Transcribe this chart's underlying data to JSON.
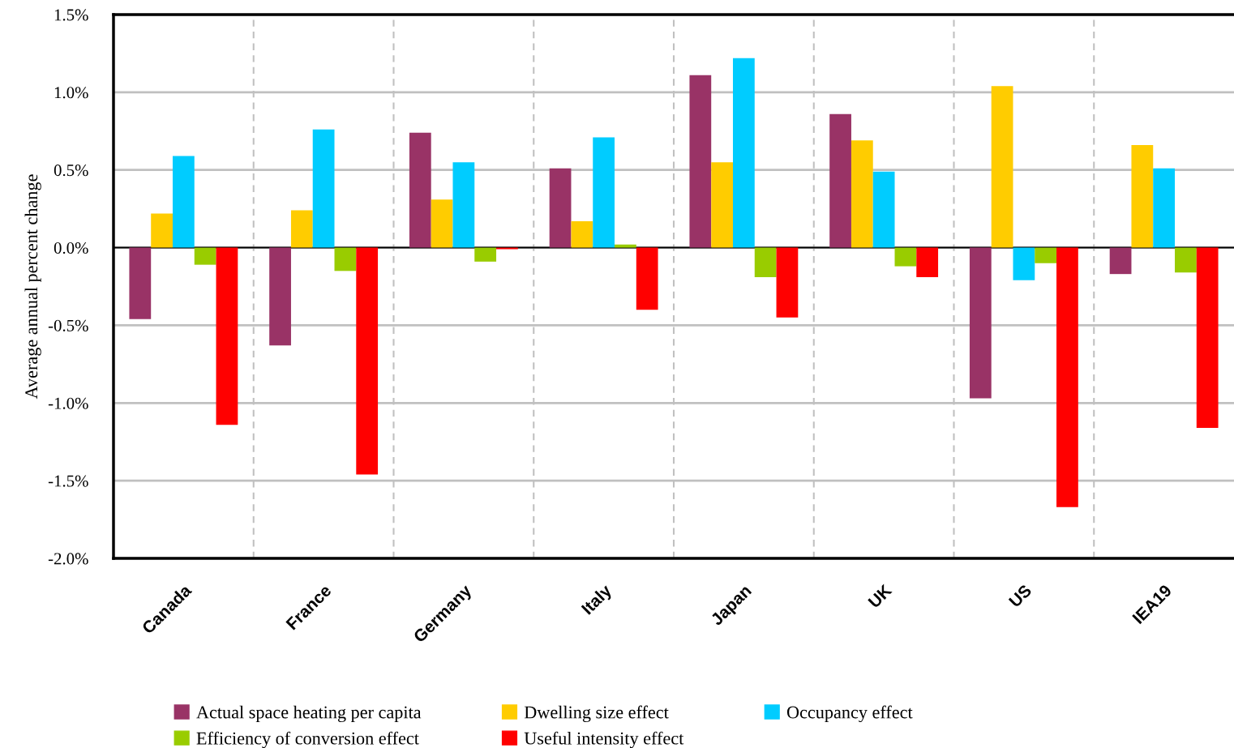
{
  "chart_data": {
    "type": "bar",
    "ylabel": "Average annual percent change",
    "categories": [
      "Canada",
      "France",
      "Germany",
      "Italy",
      "Japan",
      "UK",
      "US",
      "IEA19"
    ],
    "series": [
      {
        "name": "Actual space heating per capita",
        "color": "#993366",
        "values": [
          -0.46,
          -0.63,
          0.74,
          0.51,
          1.11,
          0.86,
          -0.97,
          -0.17
        ]
      },
      {
        "name": "Dwelling size effect",
        "color": "#ffcc00",
        "values": [
          0.22,
          0.24,
          0.31,
          0.17,
          0.55,
          0.69,
          1.04,
          0.66
        ]
      },
      {
        "name": "Occupancy effect",
        "color": "#00ccff",
        "values": [
          0.59,
          0.76,
          0.55,
          0.71,
          1.22,
          0.49,
          -0.21,
          0.51
        ]
      },
      {
        "name": "Efficiency of conversion effect",
        "color": "#99cc00",
        "values": [
          -0.11,
          -0.15,
          -0.09,
          0.02,
          -0.19,
          -0.12,
          -0.1,
          -0.16
        ]
      },
      {
        "name": "Useful intensity effect",
        "color": "#ff0000",
        "values": [
          -1.14,
          -1.46,
          -0.01,
          -0.4,
          -0.45,
          -0.19,
          -1.67,
          -1.16
        ]
      }
    ],
    "ylim": [
      -2.0,
      1.5
    ],
    "yticks": [
      {
        "value": -2.0,
        "label": "-2.0%"
      },
      {
        "value": -1.5,
        "label": "-1.5%"
      },
      {
        "value": -1.0,
        "label": "-1.0%"
      },
      {
        "value": -0.5,
        "label": "-0.5%"
      },
      {
        "value": 0.0,
        "label": "0.0%"
      },
      {
        "value": 0.5,
        "label": "0.5%"
      },
      {
        "value": 1.0,
        "label": "1.0%"
      },
      {
        "value": 1.5,
        "label": "1.5%"
      }
    ],
    "grid": true,
    "legend": "bottom"
  }
}
